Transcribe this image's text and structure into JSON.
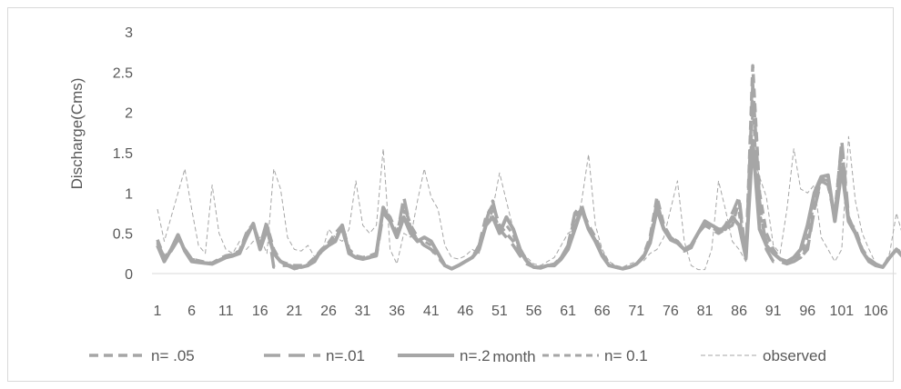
{
  "chart_data": {
    "type": "line",
    "title": "",
    "xlabel": "month",
    "ylabel": "Discharge(Cms)",
    "ylim": [
      0,
      3
    ],
    "yticks": [
      "0",
      "0.5",
      "1",
      "1.5",
      "2",
      "2.5",
      "3"
    ],
    "xlim": [
      1,
      109
    ],
    "xticks": [
      "1",
      "6",
      "11",
      "16",
      "21",
      "26",
      "31",
      "36",
      "41",
      "46",
      "51",
      "56",
      "61",
      "66",
      "71",
      "76",
      "81",
      "86",
      "91",
      "96",
      "101",
      "106"
    ],
    "grid": false,
    "legend_position": "bottom",
    "series": [
      {
        "name": "n= .05",
        "color": "#a6a6a6",
        "style": "dash-medium",
        "values": [
          0.42,
          0.2,
          0.3,
          0.45,
          0.3,
          0.18,
          0.16,
          0.14,
          0.13,
          0.18,
          0.22,
          0.24,
          0.28,
          0.5,
          0.62,
          0.35,
          0.6,
          0.3,
          0.15,
          0.12,
          0.1,
          0.1,
          0.12,
          0.2,
          0.3,
          0.38,
          0.5,
          0.6,
          0.3,
          0.22,
          0.2,
          0.22,
          0.25,
          0.8,
          0.7,
          0.5,
          0.85,
          0.6,
          0.45,
          0.35,
          0.3,
          0.22,
          0.1,
          0.06,
          0.1,
          0.15,
          0.2,
          0.35,
          0.7,
          0.85,
          0.6,
          0.5,
          0.4,
          0.25,
          0.15,
          0.08,
          0.08,
          0.1,
          0.12,
          0.2,
          0.35,
          0.7,
          0.8,
          0.6,
          0.45,
          0.25,
          0.12,
          0.08,
          0.06,
          0.08,
          0.12,
          0.22,
          0.45,
          0.95,
          0.6,
          0.45,
          0.4,
          0.3,
          0.35,
          0.5,
          0.6,
          0.55,
          0.5,
          0.55,
          0.6,
          0.9,
          0.18,
          2.58,
          1.0,
          0.5,
          0.3,
          0.18,
          0.14,
          0.15,
          0.2,
          0.35,
          0.8,
          1.2,
          1.1,
          0.75,
          1.6,
          0.65,
          0.55,
          0.3,
          0.18,
          0.12,
          0.08,
          0.2,
          0.3,
          0.25,
          0.35,
          0.55,
          0.8,
          0.6
        ]
      },
      {
        "name": "n=.01",
        "color": "#a6a6a6",
        "style": "dash-long",
        "values": [
          0.38,
          0.2,
          0.28,
          0.42,
          0.3,
          0.18,
          0.15,
          0.13,
          0.13,
          0.17,
          0.22,
          0.23,
          0.27,
          0.48,
          0.6,
          0.35,
          0.65,
          0.08,
          0.1,
          0.1,
          0.06,
          0.08,
          0.1,
          0.15,
          0.3,
          0.35,
          0.45,
          0.55,
          0.25,
          0.2,
          0.18,
          0.2,
          0.22,
          0.75,
          0.65,
          0.45,
          0.95,
          0.55,
          0.42,
          0.35,
          0.3,
          0.2,
          0.1,
          0.06,
          0.1,
          0.15,
          0.2,
          0.35,
          0.65,
          0.9,
          0.55,
          0.45,
          0.35,
          0.22,
          0.12,
          0.08,
          0.07,
          0.1,
          0.1,
          0.2,
          0.35,
          0.75,
          0.85,
          0.55,
          0.4,
          0.22,
          0.1,
          0.08,
          0.06,
          0.08,
          0.12,
          0.2,
          0.4,
          0.9,
          0.55,
          0.45,
          0.38,
          0.28,
          0.32,
          0.5,
          0.6,
          0.55,
          0.5,
          0.6,
          0.75,
          0.95,
          0.2,
          2.35,
          0.9,
          0.3,
          0.15,
          0.15,
          0.12,
          0.15,
          0.2,
          0.3,
          0.8,
          1.15,
          1.1,
          0.7,
          1.65,
          0.7,
          0.5,
          0.3,
          0.18,
          0.12,
          0.08,
          0.2,
          0.3,
          0.25,
          0.35,
          0.5,
          0.85,
          0.55
        ]
      },
      {
        "name": "n=.2",
        "color": "#a6a6a6",
        "style": "solid-thick",
        "values": [
          0.35,
          0.15,
          0.3,
          0.48,
          0.28,
          0.15,
          0.14,
          0.13,
          0.12,
          0.16,
          0.2,
          0.22,
          0.25,
          0.45,
          0.62,
          0.3,
          0.55,
          0.25,
          0.15,
          0.1,
          0.08,
          0.08,
          0.1,
          0.18,
          0.28,
          0.35,
          0.4,
          0.6,
          0.25,
          0.2,
          0.18,
          0.2,
          0.25,
          0.82,
          0.65,
          0.45,
          0.7,
          0.5,
          0.4,
          0.45,
          0.4,
          0.25,
          0.1,
          0.06,
          0.1,
          0.15,
          0.2,
          0.3,
          0.6,
          0.7,
          0.5,
          0.7,
          0.55,
          0.3,
          0.15,
          0.08,
          0.07,
          0.1,
          0.1,
          0.18,
          0.3,
          0.55,
          0.8,
          0.55,
          0.4,
          0.22,
          0.1,
          0.08,
          0.06,
          0.08,
          0.12,
          0.2,
          0.38,
          0.8,
          0.55,
          0.42,
          0.38,
          0.3,
          0.35,
          0.5,
          0.65,
          0.6,
          0.55,
          0.55,
          0.7,
          0.6,
          0.2,
          1.65,
          0.55,
          0.35,
          0.25,
          0.18,
          0.15,
          0.2,
          0.3,
          0.6,
          1.0,
          1.2,
          1.22,
          0.65,
          1.3,
          0.65,
          0.5,
          0.28,
          0.15,
          0.1,
          0.08,
          0.2,
          0.3,
          0.2,
          0.32,
          0.5,
          0.65,
          0.38
        ]
      },
      {
        "name": "n= 0.1",
        "color": "#a6a6a6",
        "style": "dash-short",
        "values": [
          0.4,
          0.18,
          0.28,
          0.44,
          0.3,
          0.16,
          0.15,
          0.13,
          0.12,
          0.17,
          0.21,
          0.23,
          0.27,
          0.5,
          0.6,
          0.32,
          0.58,
          0.28,
          0.14,
          0.11,
          0.09,
          0.09,
          0.11,
          0.19,
          0.3,
          0.36,
          0.45,
          0.58,
          0.28,
          0.21,
          0.19,
          0.21,
          0.24,
          0.8,
          0.66,
          0.47,
          0.78,
          0.55,
          0.42,
          0.4,
          0.35,
          0.23,
          0.1,
          0.06,
          0.1,
          0.15,
          0.2,
          0.33,
          0.62,
          0.78,
          0.55,
          0.6,
          0.48,
          0.27,
          0.14,
          0.08,
          0.07,
          0.1,
          0.11,
          0.19,
          0.33,
          0.62,
          0.8,
          0.57,
          0.42,
          0.24,
          0.11,
          0.08,
          0.06,
          0.08,
          0.12,
          0.21,
          0.42,
          0.88,
          0.57,
          0.43,
          0.39,
          0.29,
          0.34,
          0.5,
          0.62,
          0.57,
          0.52,
          0.57,
          0.66,
          0.75,
          0.19,
          2.05,
          0.75,
          0.4,
          0.25,
          0.17,
          0.14,
          0.17,
          0.25,
          0.45,
          0.9,
          1.18,
          1.15,
          0.7,
          1.45,
          0.67,
          0.52,
          0.29,
          0.17,
          0.11,
          0.08,
          0.2,
          0.3,
          0.22,
          0.33,
          0.52,
          0.75,
          0.45
        ]
      },
      {
        "name": "observed",
        "color": "#a6a6a6",
        "style": "dash-thin",
        "values": [
          0.8,
          0.4,
          0.7,
          1.0,
          1.3,
          0.8,
          0.35,
          0.25,
          1.1,
          0.5,
          0.3,
          0.25,
          0.4,
          0.3,
          0.4,
          0.45,
          0.25,
          1.3,
          1.05,
          0.45,
          0.3,
          0.28,
          0.35,
          0.2,
          0.25,
          0.55,
          0.45,
          0.4,
          0.55,
          1.15,
          0.6,
          0.5,
          0.6,
          1.55,
          0.3,
          0.12,
          0.5,
          0.45,
          0.9,
          1.3,
          0.95,
          0.8,
          0.35,
          0.2,
          0.18,
          0.22,
          0.3,
          0.25,
          0.55,
          0.8,
          1.25,
          0.9,
          0.55,
          0.3,
          0.2,
          0.12,
          0.1,
          0.15,
          0.2,
          0.35,
          0.5,
          0.55,
          0.9,
          1.48,
          0.6,
          0.3,
          0.15,
          0.1,
          0.08,
          0.12,
          0.15,
          0.15,
          0.25,
          0.3,
          0.45,
          0.8,
          1.15,
          0.4,
          0.1,
          0.05,
          0.05,
          0.3,
          1.15,
          0.8,
          0.4,
          0.3,
          0.15,
          1.5,
          1.2,
          0.95,
          0.35,
          0.25,
          0.8,
          1.55,
          1.05,
          1.0,
          1.1,
          0.45,
          0.3,
          0.15,
          0.3,
          1.7,
          0.9,
          0.5,
          0.3,
          0.12,
          0.1,
          0.25,
          0.75,
          0.45,
          0.2,
          0.1,
          0.5,
          0.4
        ]
      }
    ]
  }
}
